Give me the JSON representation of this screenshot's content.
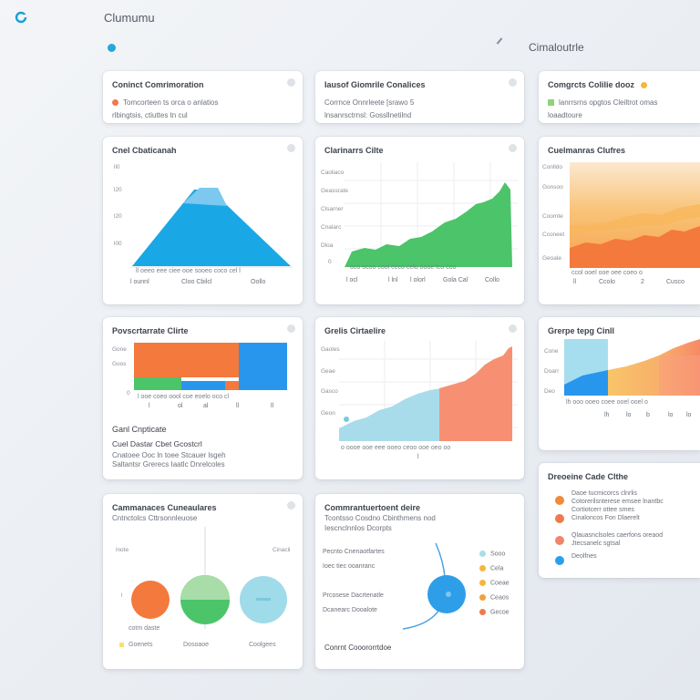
{
  "app": {
    "title": "Clumumu",
    "subtitle": "Cimaloutrle"
  },
  "cards": {
    "s1": {
      "title": "Coninct Comrimoration",
      "line1": "Tomcorteen ts orca  o anlatios",
      "line2": "rlbingtsis, ctiuttes tn cul"
    },
    "s2": {
      "title": "Iausof Giomrile Conalices",
      "line1": "Corrnce Onnrleete [srawo  5",
      "line2": "lnsanrsctrnsl: Gossllnetilnd"
    },
    "s3": {
      "title": "Comgrcts Colilie dooz",
      "line1": "lanrrsrns  opgtos  Cleiltrot omas",
      "line2": "loaadtoure"
    },
    "c1": {
      "title": "Cnel Cbaticanah",
      "yticks": [
        "ll0",
        "l20",
        "l20",
        "l00"
      ],
      "xticks": [
        "l  ounnl",
        "Cloo  Cbilcl",
        "Oollo"
      ]
    },
    "c2": {
      "title": "Clarinarrs Cilte",
      "yticks": [
        "Caoliaco",
        "Geassrate",
        "Clsarner",
        "Cnalarc",
        "Dloa"
      ],
      "xticks": [
        "l  ocl",
        "l lnl",
        "l  olorl",
        "Gola  Cal",
        "Collo"
      ]
    },
    "c3": {
      "title": "Cuelmanras Clufres",
      "yticks": [
        "Conlldo",
        "Gonsoo",
        "Coomte",
        "Cconeet",
        "Geoale"
      ],
      "xticks": [
        "ll",
        "Ccolo",
        "2",
        "Cusco"
      ]
    },
    "c4": {
      "title": "Povscrtarrate Clirte",
      "yticks": [
        "Gone",
        "Goos",
        "0"
      ],
      "xticks": [
        "l",
        "ol",
        "al",
        "ll",
        "ll"
      ],
      "sub1": "Ganl Cnpticate",
      "sub2": "Cuel  Dastar  Cbet  Gcostcrl",
      "sub3": "Cnatoee  Ooc  ln toee  Stcauer lsgeh",
      "sub4": "Saltantsr  Grerecs  Iaatlc  Dnrelcoles"
    },
    "c5": {
      "title": "Grelis Cirtaelire",
      "yticks": [
        "Gaoles",
        "Geae",
        "Gasco",
        "Geon"
      ],
      "xticks": [
        "l"
      ]
    },
    "c6": {
      "title": "Grerpe tepg Cinll",
      "yticks": [
        "Cone",
        "Doarr",
        "Deo"
      ],
      "xticks": [
        "lh",
        "lo",
        "b",
        "lo",
        "lo"
      ]
    },
    "c7": {
      "title": "Dreoeine Cade Clthe",
      "items": [
        {
          "color": "#f08a3c",
          "l1": "Daoe tucmicorcs clnrlis",
          "l2": "Cotorerilsnterese emsee lnantbc"
        },
        {
          "color": "#f07a4a",
          "l1": "Cortiotcerr ottee smes",
          "l2": "Cinaloncos  Fon  Dlaerelt"
        },
        {
          "color": "#f0856a",
          "l1": "Qlauasnclsoles caerfons  oreaod",
          "l2": "Jtecsanelc  sgtsal"
        },
        {
          "color": "#2f9ee8",
          "l1": "Deolfnes",
          "l2": ""
        }
      ]
    },
    "c8": {
      "title": "Cammanaces Cuneaulares",
      "line1": "Cntnctolcs  Cttrsonnleuose",
      "ltick": "lnote",
      "rtick": "Cinacil",
      "left": "l",
      "label": "cotm  daste",
      "foot": [
        "Goenets",
        "Dosoaoe",
        "Coolgees"
      ]
    },
    "c9": {
      "title": "Commrantuertoent deire",
      "line1": "Tcontsso  Cosdno  Cbinthmens  nod",
      "line2": "Iescnclnnlos  Dcorpts",
      "rows": [
        "Pecnto  Cnenaotfartes",
        "Ioec  tiec  ooanranc",
        "Prcosese  Dacrtenatle",
        "Dcanearc  Dooalote"
      ],
      "legend": [
        "Sooo",
        "Cela",
        "Coeae",
        "Ceaos",
        "Gecoe"
      ],
      "foot": "Conrnt  Cooororrtdoe"
    }
  },
  "colors": {
    "blue": "#1aa7e6",
    "green": "#4cc46a",
    "orange": "#f4793c",
    "teal": "#9fdbe9",
    "accent": "#25a8d8"
  }
}
